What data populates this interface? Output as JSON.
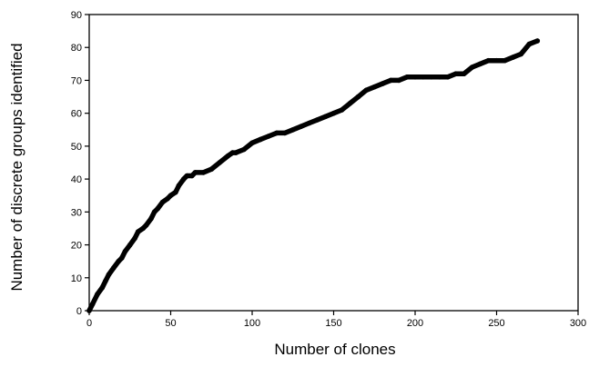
{
  "chart_data": {
    "type": "line",
    "title": "",
    "xlabel": "Number of clones",
    "ylabel": "Number of discrete groups identified",
    "xlim": [
      0,
      300
    ],
    "ylim": [
      0,
      90
    ],
    "xticks": [
      "0",
      "50",
      "100",
      "150",
      "200",
      "250",
      "300"
    ],
    "yticks": [
      "0",
      "10",
      "20",
      "30",
      "40",
      "50",
      "60",
      "70",
      "80",
      "90"
    ],
    "grid": false,
    "legend": "none",
    "line_color": "#000000",
    "series": [
      {
        "x": [
          0,
          2,
          5,
          8,
          10,
          12,
          15,
          18,
          20,
          22,
          25,
          28,
          30,
          33,
          35,
          38,
          40,
          42,
          45,
          48,
          50,
          53,
          55,
          58,
          60,
          63,
          65,
          70,
          75,
          80,
          85,
          88,
          90,
          95,
          100,
          105,
          110,
          115,
          120,
          125,
          130,
          135,
          140,
          145,
          150,
          155,
          160,
          165,
          170,
          175,
          180,
          185,
          190,
          195,
          200,
          205,
          210,
          215,
          220,
          225,
          230,
          235,
          240,
          245,
          250,
          255,
          260,
          265,
          270,
          275
        ],
        "y": [
          0,
          2,
          5,
          7,
          9,
          11,
          13,
          15,
          16,
          18,
          20,
          22,
          24,
          25,
          26,
          28,
          30,
          31,
          33,
          34,
          35,
          36,
          38,
          40,
          41,
          41,
          42,
          42,
          43,
          45,
          47,
          48,
          48,
          49,
          51,
          52,
          53,
          54,
          54,
          55,
          56,
          57,
          58,
          59,
          60,
          61,
          63,
          65,
          67,
          68,
          69,
          70,
          70,
          71,
          71,
          71,
          71,
          71,
          71,
          72,
          72,
          74,
          75,
          76,
          76,
          76,
          77,
          78,
          81,
          82
        ]
      }
    ]
  }
}
